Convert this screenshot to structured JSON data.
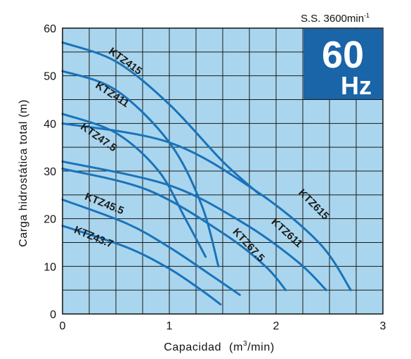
{
  "chart_data": {
    "type": "line",
    "xlabel": "Capacidad",
    "xlabel_unit_prefix": "(m",
    "xlabel_unit_sup": "3",
    "xlabel_unit_suffix": "/min)",
    "ylabel": "Carga hidrostática total (m)",
    "xlim": [
      0,
      3
    ],
    "ylim": [
      0,
      60
    ],
    "x_ticks": [
      "0",
      "1",
      "2",
      "3"
    ],
    "y_ticks": [
      "0",
      "10",
      "20",
      "30",
      "40",
      "50",
      "60"
    ],
    "grid": true,
    "speed_note": "S.S. 3600min",
    "speed_note_sup": "-1",
    "frequency_value": "60",
    "frequency_unit": "Hz",
    "colors": {
      "plot_background": "#a9d6ee",
      "grid": "#1a1a1a",
      "curve": "#1a73ba",
      "badge": "#1a64a8"
    },
    "series": [
      {
        "name": "KTZ415",
        "x": [
          0,
          0.5,
          1.0,
          1.5,
          1.85
        ],
        "y": [
          57,
          53,
          44,
          32,
          25
        ]
      },
      {
        "name": "KTZ411",
        "x": [
          0,
          0.5,
          1.0,
          1.3,
          1.46
        ],
        "y": [
          51,
          47,
          36,
          23,
          10
        ]
      },
      {
        "name": "KTZ47.5",
        "x": [
          0,
          0.5,
          0.9,
          1.15,
          1.34
        ],
        "y": [
          42,
          38,
          30,
          20,
          12
        ]
      },
      {
        "name": "KTZ45.5",
        "x": [
          0,
          0.6,
          1.0,
          1.4,
          1.66
        ],
        "y": [
          24,
          19,
          14,
          8,
          4
        ]
      },
      {
        "name": "KTZ43.7",
        "x": [
          0,
          0.6,
          1.0,
          1.3,
          1.48
        ],
        "y": [
          18.5,
          14,
          9.5,
          5,
          2
        ]
      },
      {
        "name": "KTZ615",
        "x": [
          0,
          1.0,
          1.8,
          2.4,
          2.7
        ],
        "y": [
          40,
          36,
          26,
          15,
          5
        ]
      },
      {
        "name": "KTZ611",
        "x": [
          0,
          1.0,
          1.7,
          2.2,
          2.47
        ],
        "y": [
          32,
          27,
          19,
          11,
          5
        ]
      },
      {
        "name": "KTZ67.5",
        "x": [
          0,
          0.8,
          1.5,
          1.9,
          2.09
        ],
        "y": [
          30.5,
          26,
          17,
          10,
          5
        ]
      }
    ],
    "annotations": [
      {
        "text": "KTZ415",
        "x": 0.57,
        "y": 52.5,
        "angle": 36
      },
      {
        "text": "KTZ411",
        "x": 0.45,
        "y": 45.5,
        "angle": 33
      },
      {
        "text": "KTZ47.5",
        "x": 0.32,
        "y": 36.5,
        "angle": 35
      },
      {
        "text": "KTZ45.5",
        "x": 0.38,
        "y": 22.5,
        "angle": 22
      },
      {
        "text": "KTZ43.7",
        "x": 0.28,
        "y": 15.5,
        "angle": 22
      },
      {
        "text": "KTZ615",
        "x": 2.33,
        "y": 22.5,
        "angle": 45
      },
      {
        "text": "KTZ611",
        "x": 2.08,
        "y": 16.5,
        "angle": 42
      },
      {
        "text": "KTZ67.5",
        "x": 1.72,
        "y": 14.0,
        "angle": 47
      }
    ]
  }
}
